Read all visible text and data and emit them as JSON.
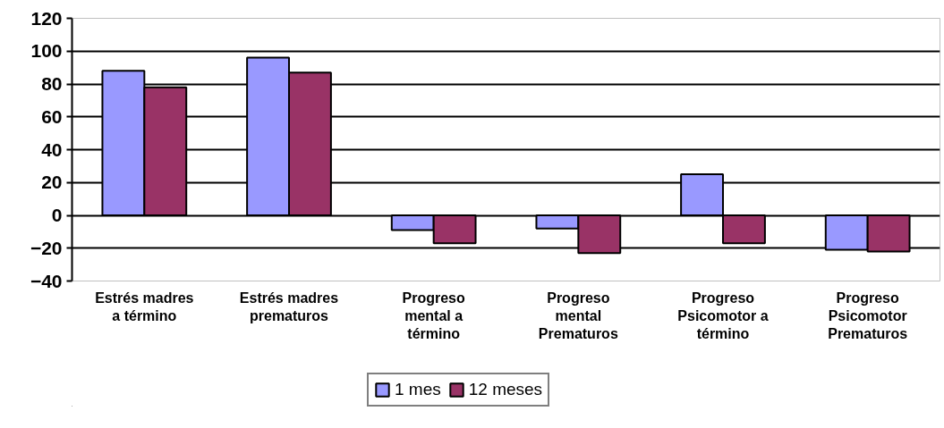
{
  "chart_data": {
    "type": "bar",
    "categories": [
      "Estrés madres a término",
      "Estrés madres prematuros",
      "Progreso mental a término",
      "Progreso mental Prematuros",
      "Progreso Psicomotor a término",
      "Progreso Psicomotor Prematuros"
    ],
    "series": [
      {
        "name": "1 mes",
        "color": "#9999ff",
        "values": [
          88,
          96,
          -9,
          -8,
          25,
          -21
        ]
      },
      {
        "name": "12 meses",
        "color": "#993366",
        "values": [
          78,
          87,
          -17,
          -23,
          -17,
          -22
        ]
      }
    ],
    "ylim": [
      -40,
      120
    ],
    "yticks": [
      -40,
      -20,
      0,
      20,
      40,
      60,
      80,
      100,
      120
    ],
    "grid": "y",
    "legend": "bottom"
  }
}
